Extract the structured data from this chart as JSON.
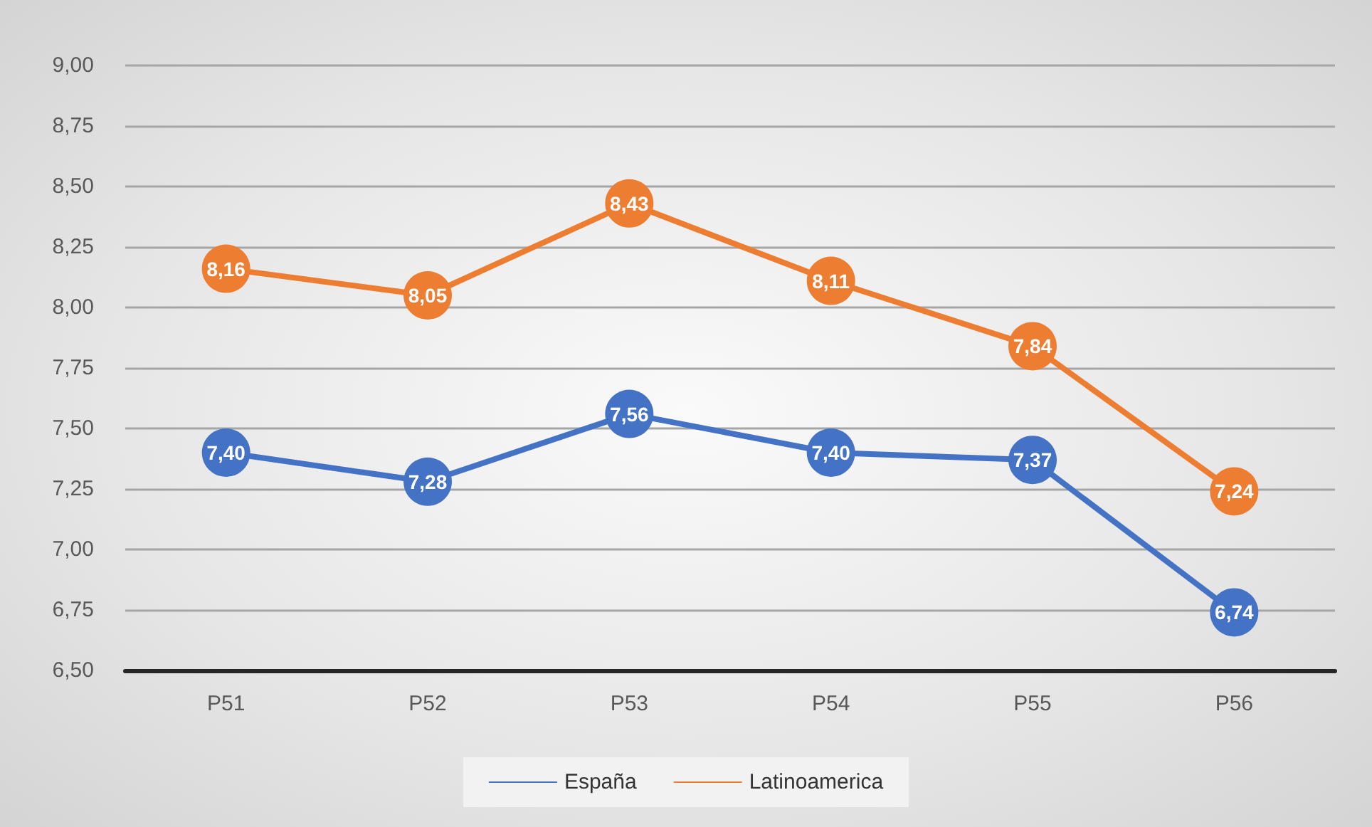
{
  "chart_data": {
    "type": "line",
    "categories": [
      "P51",
      "P52",
      "P53",
      "P54",
      "P55",
      "P56"
    ],
    "series": [
      {
        "name": "España",
        "color": "#4472c4",
        "values": [
          7.4,
          7.28,
          7.56,
          7.4,
          7.37,
          6.74
        ],
        "value_labels": [
          "7,40",
          "7,28",
          "7,56",
          "7,40",
          "7,37",
          "6,74"
        ]
      },
      {
        "name": "Latinoamerica",
        "color": "#ed7d31",
        "values": [
          8.16,
          8.05,
          8.43,
          8.11,
          7.84,
          7.24
        ],
        "value_labels": [
          "8,16",
          "8,05",
          "8,43",
          "8,11",
          "7,84",
          "7,24"
        ]
      }
    ],
    "ylim": [
      6.5,
      9.0
    ],
    "yticks": [
      {
        "value": 6.5,
        "label": "6,50"
      },
      {
        "value": 6.75,
        "label": "6,75"
      },
      {
        "value": 7.0,
        "label": "7,00"
      },
      {
        "value": 7.25,
        "label": "7,25"
      },
      {
        "value": 7.5,
        "label": "7,50"
      },
      {
        "value": 7.75,
        "label": "7,75"
      },
      {
        "value": 8.0,
        "label": "8,00"
      },
      {
        "value": 8.25,
        "label": "8,25"
      },
      {
        "value": 8.5,
        "label": "8,50"
      },
      {
        "value": 8.75,
        "label": "8,75"
      },
      {
        "value": 9.0,
        "label": "9,00"
      }
    ],
    "grid": "y",
    "legend": "bottom",
    "marker": "circle",
    "line_style": "solid"
  }
}
